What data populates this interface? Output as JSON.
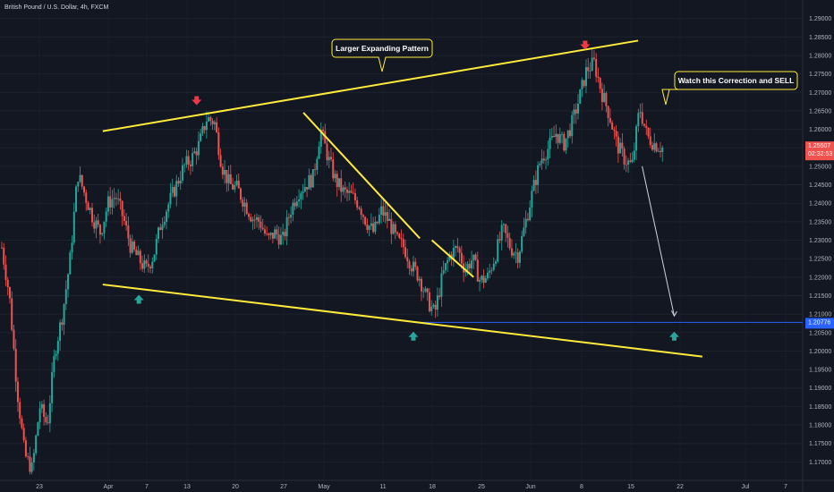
{
  "header": {
    "title": "British Pound / U.S. Dollar, 4h, FXCM"
  },
  "annotations": {
    "pattern_label": "Larger Expanding Pattern",
    "sell_label": "Watch this Correction and SELL"
  },
  "price_axis": {
    "current_price": "1.25507",
    "countdown": "02:32:53",
    "level_price": "1.20776"
  },
  "colors": {
    "background": "#131722",
    "up": "#26a69a",
    "down": "#ef5350",
    "trendline": "#ffeb3b",
    "level_line": "#2962ff",
    "marker_up": "#26a69a",
    "marker_down": "#f23645"
  },
  "chart_data": {
    "type": "candlestick",
    "ylim": [
      1.165,
      1.295
    ],
    "y_ticks": [
      "1.29000",
      "1.28500",
      "1.28000",
      "1.27500",
      "1.27000",
      "1.26500",
      "1.26000",
      "1.25500",
      "1.25000",
      "1.24500",
      "1.24000",
      "1.23500",
      "1.23000",
      "1.22500",
      "1.22000",
      "1.21500",
      "1.21000",
      "1.20500",
      "1.20000",
      "1.19500",
      "1.19000",
      "1.18500",
      "1.18000",
      "1.17500",
      "1.17000"
    ],
    "x_ticks": [
      "23",
      "Apr",
      "7",
      "13",
      "20",
      "27",
      "May",
      "11",
      "18",
      "25",
      "Jun",
      "8",
      "15",
      "22",
      "Jul",
      "7"
    ],
    "price_path": [
      [
        1.228,
        1.215,
        1.19,
        1.172,
        1.168,
        1.185,
        1.18,
        1.2,
        1.21,
        1.225,
        1.248,
        1.242,
        1.236,
        1.232,
        1.24,
        1.242,
        1.236,
        1.228,
        1.225,
        1.222,
        1.226,
        1.235,
        1.24,
        1.245,
        1.25,
        1.252,
        1.256,
        1.263,
        1.262,
        1.25,
        1.245,
        1.244,
        1.24,
        1.236,
        1.235,
        1.23,
        1.232,
        1.23,
        1.238,
        1.243,
        1.245,
        1.247,
        1.26,
        1.252,
        1.246,
        1.243,
        1.242,
        1.24,
        1.235,
        1.232,
        1.238,
        1.235,
        1.23,
        1.228,
        1.223,
        1.22,
        1.214,
        1.21,
        1.22,
        1.226,
        1.228,
        1.222,
        1.225,
        1.219,
        1.22,
        1.226,
        1.233,
        1.228,
        1.226,
        1.235,
        1.244,
        1.252,
        1.255,
        1.259,
        1.256,
        1.261,
        1.268,
        1.276,
        1.278,
        1.27,
        1.264,
        1.256,
        1.252,
        1.25,
        1.266,
        1.258,
        1.256,
        1.255
      ],
      [
        0.12,
        0.145,
        0.13,
        0.2,
        0.26,
        0.3,
        0.395,
        0.42,
        0.45,
        0.47,
        0.51,
        0.525,
        0.55,
        0.575,
        0.6,
        0.61,
        0.68,
        0.7,
        0.725,
        0.735,
        0.75,
        0.77,
        0.8,
        0.82,
        0.84,
        0.87,
        0.88,
        0.89
      ]
    ],
    "series": [
      {
        "name": "Larger Expanding Pattern",
        "kind": "trendline",
        "x": [
          0.128,
          0.795
        ],
        "y": [
          1.2595,
          1.284
        ]
      },
      {
        "kind": "trendline",
        "x": [
          0.128,
          0.875
        ],
        "y": [
          1.218,
          1.1985
        ]
      },
      {
        "kind": "trendline",
        "x": [
          0.378,
          0.523
        ],
        "y": [
          1.2645,
          1.2305
        ]
      },
      {
        "kind": "trendline",
        "x": [
          0.538,
          0.59
        ],
        "y": [
          1.23,
          1.22
        ]
      }
    ],
    "level": {
      "y": 1.20776
    },
    "markers": [
      {
        "type": "down",
        "x": 0.245,
        "y": 1.2668
      },
      {
        "type": "down",
        "x": 0.729,
        "y": 1.2818
      },
      {
        "type": "up",
        "x": 0.173,
        "y": 1.215
      },
      {
        "type": "up",
        "x": 0.515,
        "y": 1.205
      },
      {
        "type": "up",
        "x": 0.84,
        "y": 1.205
      }
    ],
    "arrow": {
      "x": [
        0.8,
        0.84
      ],
      "y": [
        1.25,
        1.2095
      ]
    },
    "labels": [
      {
        "key": "pattern_label",
        "anchor_x": 0.458,
        "anchor_y": 1.2742
      },
      {
        "key": "sell_label",
        "anchor_x": 0.8,
        "anchor_y": 1.2645
      }
    ]
  }
}
